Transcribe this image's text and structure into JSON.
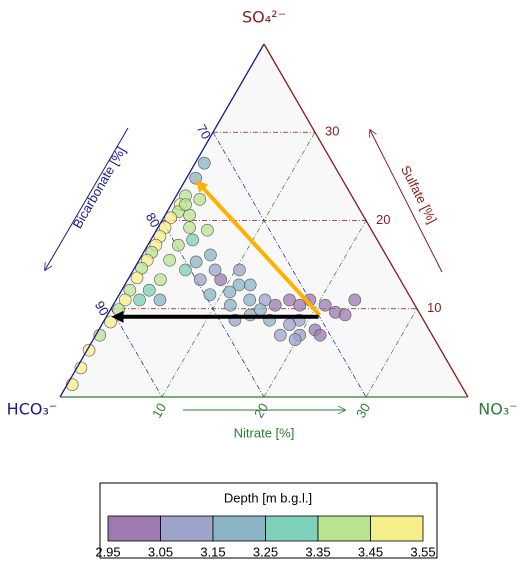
{
  "chart_data": {
    "type": "ternary",
    "vertex_labels": {
      "top": "SO₄²⁻",
      "left": "HCO₃⁻",
      "right": "NO₃⁻"
    },
    "axes": {
      "sulfate": {
        "label": "Sulfate [%]",
        "lim": [
          0,
          40
        ],
        "ticks": [
          10,
          20,
          30
        ],
        "color": "#8b1a1a"
      },
      "bicarbonate": {
        "label": "Bicarbonate [%]",
        "lim": [
          60,
          100
        ],
        "ticks": [
          70,
          80,
          90
        ],
        "color": "#1a1a8c"
      },
      "nitrate": {
        "label": "Nitrate [%]",
        "lim": [
          0,
          40
        ],
        "ticks": [
          10,
          20,
          30
        ],
        "color": "#2e7d32"
      }
    },
    "points": {
      "nitrate": [
        0.9,
        0.9,
        0.9,
        0.9,
        1.1,
        0.7,
        0.7,
        0.7,
        0.8,
        0.8,
        0.8,
        0.7,
        0.8,
        0.8,
        0.9,
        0.8,
        0.7,
        0.4,
        0.2,
        0.4,
        0.5,
        2.4,
        5.0,
        4.1,
        3.0,
        6.7,
        5.7,
        9.1,
        11.2,
        10.7,
        13.1,
        14.6,
        15.9,
        17.0,
        18.3,
        19.0,
        20.8,
        22.2,
        23.3,
        23.4,
        19.1,
        18.4,
        20.0,
        21.2,
        22.0,
        16.2,
        14.0,
        12.8,
        11.5,
        8.9,
        7.1,
        5.1,
        3.0,
        3.2,
        2.7,
        4.3,
        2.3,
        8.0,
        10.4,
        12.3,
        3.1,
        2.5,
        1.4,
        18.1,
        19.8,
        14.7
      ],
      "sulfate": [
        26.5,
        24.8,
        22.8,
        21.8,
        21.0,
        20.3,
        19.2,
        18.2,
        17.2,
        16.4,
        15.5,
        14.6,
        13.5,
        12.1,
        11.0,
        9.9,
        8.5,
        7.0,
        5.3,
        3.3,
        1.4,
        20.6,
        18.9,
        17.8,
        17.2,
        16.1,
        15.3,
        13.3,
        12.7,
        11.9,
        11.0,
        11.0,
        10.4,
        11.0,
        10.4,
        11.0,
        10.4,
        9.6,
        9.3,
        11.0,
        8.7,
        8.2,
        7.0,
        7.6,
        7.0,
        8.7,
        9.3,
        8.7,
        10.4,
        11.6,
        13.3,
        14.4,
        15.5,
        13.3,
        12.1,
        11.0,
        11.0,
        14.4,
        14.4,
        12.7,
        19.2,
        22.4,
        21.8,
        7.0,
        6.5,
        9.9
      ],
      "depth": [
        3.2,
        3.2,
        3.35,
        3.5,
        3.4,
        3.5,
        3.5,
        3.45,
        3.5,
        3.4,
        3.5,
        3.35,
        3.5,
        3.4,
        3.5,
        3.4,
        3.5,
        3.35,
        3.5,
        3.5,
        3.5,
        3.35,
        3.35,
        3.25,
        3.35,
        3.2,
        3.2,
        3.0,
        3.2,
        3.15,
        3.2,
        3.1,
        3.0,
        2.98,
        3.0,
        3.0,
        3.0,
        3.0,
        3.0,
        3.0,
        3.1,
        3.1,
        3.1,
        3.0,
        3.0,
        3.15,
        3.2,
        3.1,
        3.15,
        3.2,
        3.1,
        3.3,
        3.35,
        3.35,
        3.25,
        3.2,
        3.25,
        3.1,
        3.1,
        3.15,
        3.35,
        3.35,
        3.4,
        3.1,
        3.1,
        3.2
      ]
    },
    "arrows": [
      {
        "color": "#ffb000",
        "from": {
          "nitrate": 20.8,
          "sulfate": 9.3
        },
        "to": {
          "nitrate": 1.0,
          "sulfate": 24.6
        }
      },
      {
        "color": "#000000",
        "from": {
          "nitrate": 20.8,
          "sulfate": 9.1
        },
        "to": {
          "nitrate": 0.5,
          "sulfate": 9.1
        }
      }
    ],
    "colorbar": {
      "title": "Depth [m b.g.l.]",
      "ticks": [
        2.95,
        3.05,
        3.15,
        3.25,
        3.35,
        3.45,
        3.55
      ],
      "colors": [
        "#9d7bb0",
        "#9ea3cc",
        "#8ab4c4",
        "#7ed0b8",
        "#b9e38f",
        "#f5ef8a"
      ]
    }
  }
}
